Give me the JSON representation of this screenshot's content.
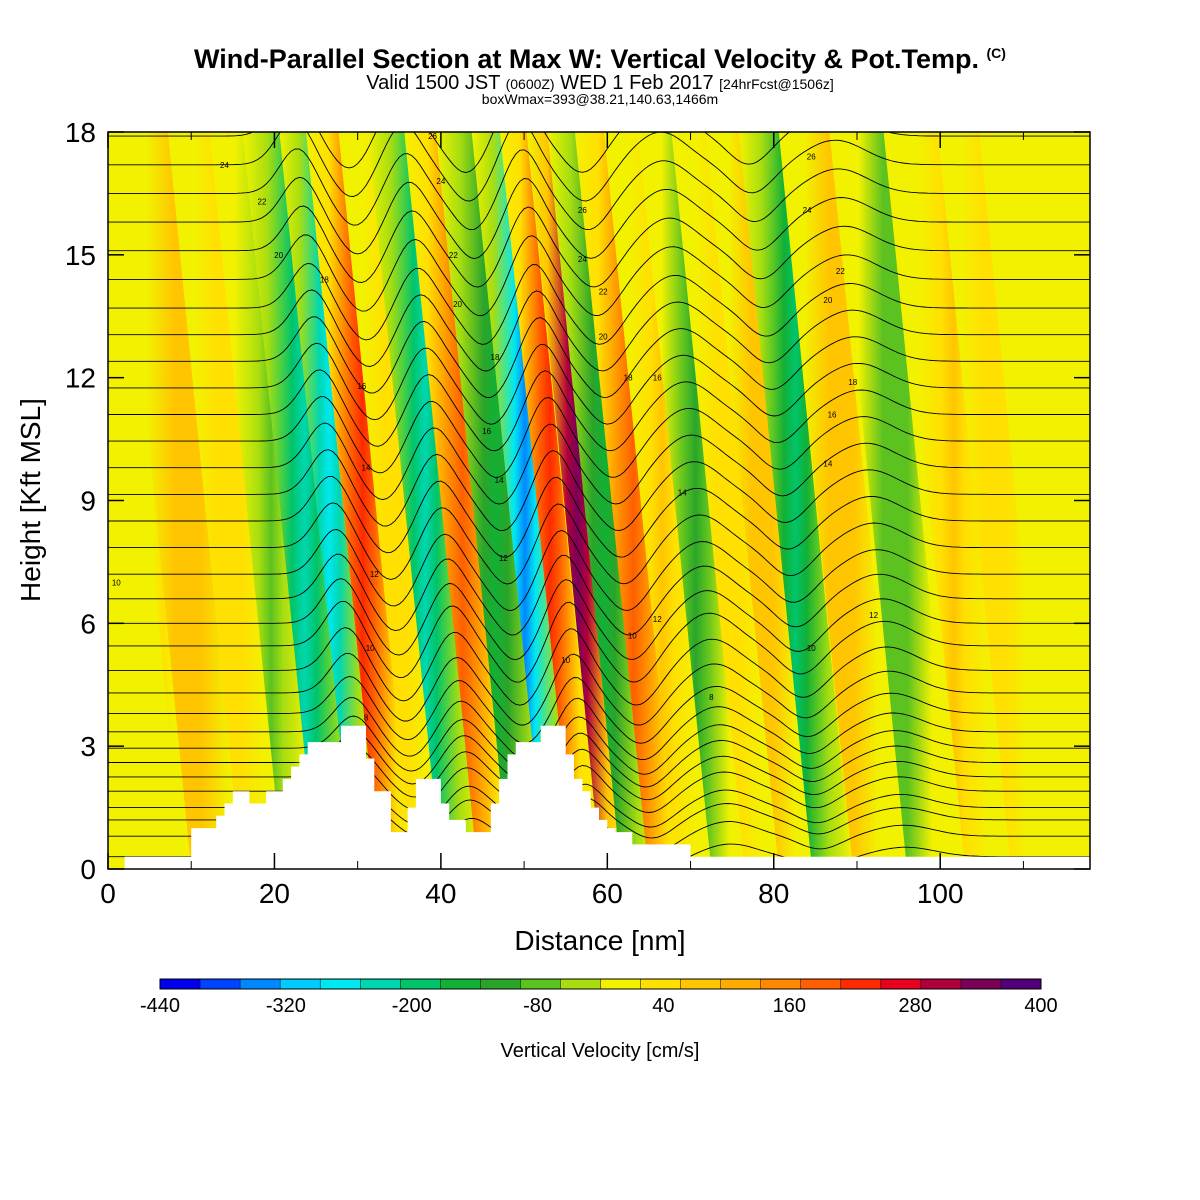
{
  "header": {
    "title": "Wind-Parallel Section at Max W: Vertical Velocity & Pot.Temp.",
    "copyright": "(C)",
    "valid_prefix": "Valid 1500 JST",
    "valid_zulu": "(0600Z)",
    "valid_date": "WED 1 Feb 2017",
    "forecast": "[24hrFcst@1506z]",
    "box_info": "boxWmax=393@38.21,140.63,1466m"
  },
  "chart_data": {
    "type": "heatmap",
    "xlabel": "Distance [nm]",
    "ylabel": "Height [Kft MSL]",
    "xlim": [
      0,
      118
    ],
    "ylim": [
      0,
      18
    ],
    "x_ticks": [
      0,
      20,
      40,
      60,
      80,
      100
    ],
    "y_ticks": [
      0,
      3,
      6,
      9,
      12,
      15,
      18
    ],
    "colorbar": {
      "label": "Vertical Velocity [cm/s]",
      "range": [
        -440,
        400
      ],
      "step": 40,
      "tick_labels": [
        -440,
        -320,
        -200,
        -80,
        40,
        160,
        280,
        400
      ],
      "colors": [
        "#0000ee",
        "#0044ff",
        "#0088ff",
        "#00ccff",
        "#00e8f0",
        "#00d7b0",
        "#00c46a",
        "#12b035",
        "#2aa52a",
        "#5cc220",
        "#a8de10",
        "#f2f200",
        "#ffe000",
        "#ffc500",
        "#ffab00",
        "#ff8800",
        "#ff5f00",
        "#ff2a00",
        "#e8001e",
        "#b0003c",
        "#7a0058",
        "#520078"
      ]
    },
    "terrain": [
      [
        0,
        0
      ],
      [
        2,
        0
      ],
      [
        2,
        0.3
      ],
      [
        10,
        0.3
      ],
      [
        10,
        1
      ],
      [
        13,
        1
      ],
      [
        13,
        1.3
      ],
      [
        14,
        1.3
      ],
      [
        14,
        1.6
      ],
      [
        15,
        1.6
      ],
      [
        15,
        1.9
      ],
      [
        17,
        1.9
      ],
      [
        17,
        1.6
      ],
      [
        19,
        1.6
      ],
      [
        19,
        1.9
      ],
      [
        21,
        1.9
      ],
      [
        21,
        2.2
      ],
      [
        22,
        2.2
      ],
      [
        22,
        2.5
      ],
      [
        23,
        2.5
      ],
      [
        23,
        2.8
      ],
      [
        24,
        2.8
      ],
      [
        24,
        3.1
      ],
      [
        28,
        3.1
      ],
      [
        28,
        3.5
      ],
      [
        31,
        3.5
      ],
      [
        31,
        2.7
      ],
      [
        32,
        2.7
      ],
      [
        32,
        1.9
      ],
      [
        34,
        1.9
      ],
      [
        34,
        0.9
      ],
      [
        36,
        0.9
      ],
      [
        36,
        1.5
      ],
      [
        37,
        1.5
      ],
      [
        37,
        2.2
      ],
      [
        40,
        2.2
      ],
      [
        40,
        1.6
      ],
      [
        41,
        1.6
      ],
      [
        41,
        1.2
      ],
      [
        43,
        1.2
      ],
      [
        43,
        0.9
      ],
      [
        46,
        0.9
      ],
      [
        46,
        1.6
      ],
      [
        47,
        1.6
      ],
      [
        47,
        2.2
      ],
      [
        48,
        2.2
      ],
      [
        48,
        2.8
      ],
      [
        49,
        2.8
      ],
      [
        49,
        3.1
      ],
      [
        52,
        3.1
      ],
      [
        52,
        3.5
      ],
      [
        55,
        3.5
      ],
      [
        55,
        2.8
      ],
      [
        56,
        2.8
      ],
      [
        56,
        2.2
      ],
      [
        57,
        2.2
      ],
      [
        57,
        1.9
      ],
      [
        58,
        1.9
      ],
      [
        58,
        1.5
      ],
      [
        59,
        1.5
      ],
      [
        59,
        1.2
      ],
      [
        60,
        1.2
      ],
      [
        60,
        1
      ],
      [
        61,
        1
      ],
      [
        61,
        0.9
      ],
      [
        63,
        0.9
      ],
      [
        63,
        0.6
      ],
      [
        70,
        0.6
      ],
      [
        70,
        0.3
      ],
      [
        118,
        0.3
      ],
      [
        118,
        0
      ]
    ],
    "series": [
      {
        "x": 11,
        "w": 2,
        "value": 40
      },
      {
        "x": 14,
        "w": 4,
        "value": 95
      },
      {
        "x": 19,
        "w": 3,
        "value": 50
      },
      {
        "x": 24,
        "w": 3,
        "value": -50
      },
      {
        "x": 28,
        "w": 3,
        "value": -210
      },
      {
        "x": 31,
        "w": 1.6,
        "value": -280
      },
      {
        "x": 35,
        "w": 2.4,
        "value": 250
      },
      {
        "x": 39,
        "w": 2.5,
        "value": 60
      },
      {
        "x": 42.5,
        "w": 2.5,
        "value": -230
      },
      {
        "x": 47,
        "w": 2.6,
        "value": 220
      },
      {
        "x": 51,
        "w": 2.8,
        "value": -150
      },
      {
        "x": 54.5,
        "w": 2,
        "value": -330
      },
      {
        "x": 57.5,
        "w": 1.6,
        "value": 250
      },
      {
        "x": 60.8,
        "w": 1.6,
        "value": 393
      },
      {
        "x": 64,
        "w": 2.4,
        "value": -150
      },
      {
        "x": 67.5,
        "w": 2.6,
        "value": 220
      },
      {
        "x": 71,
        "w": 2.6,
        "value": 80
      },
      {
        "x": 75,
        "w": 2.5,
        "value": -90
      },
      {
        "x": 79,
        "w": 2.5,
        "value": 70
      },
      {
        "x": 83,
        "w": 2.4,
        "value": 110
      },
      {
        "x": 87,
        "w": 2.4,
        "value": -170
      },
      {
        "x": 92.5,
        "w": 3,
        "value": 110
      },
      {
        "x": 99,
        "w": 3,
        "value": -70
      },
      {
        "x": 106,
        "w": 3,
        "value": 80
      },
      {
        "x": 111,
        "w": 2.5,
        "value": 50
      }
    ],
    "contours": {
      "base_levels": [
        0.3,
        0.8,
        1.2,
        1.5,
        1.9,
        2.25,
        2.6,
        2.95,
        3.35,
        3.8,
        4.3,
        4.85,
        5.45,
        6.0,
        6.6,
        7.2,
        7.85,
        8.5,
        9.15,
        9.8,
        10.45,
        11.1,
        11.75,
        12.4,
        13.05,
        13.7,
        14.4,
        15.1,
        15.8,
        16.5,
        17.2,
        17.9
      ],
      "labels": [
        {
          "text": "24",
          "x": 14,
          "y": 17.2
        },
        {
          "text": "22",
          "x": 18.5,
          "y": 16.3
        },
        {
          "text": "20",
          "x": 20.5,
          "y": 15.0
        },
        {
          "text": "18",
          "x": 26,
          "y": 14.4
        },
        {
          "text": "16",
          "x": 30.5,
          "y": 11.8
        },
        {
          "text": "14",
          "x": 31,
          "y": 9.8
        },
        {
          "text": "12",
          "x": 32,
          "y": 7.2
        },
        {
          "text": "10",
          "x": 31.5,
          "y": 5.4
        },
        {
          "text": "8",
          "x": 31,
          "y": 3.7
        },
        {
          "text": "26",
          "x": 39,
          "y": 17.9
        },
        {
          "text": "24",
          "x": 40,
          "y": 16.8
        },
        {
          "text": "22",
          "x": 41.5,
          "y": 15.0
        },
        {
          "text": "20",
          "x": 42,
          "y": 13.8
        },
        {
          "text": "18",
          "x": 46.5,
          "y": 12.5
        },
        {
          "text": "16",
          "x": 45.5,
          "y": 10.7
        },
        {
          "text": "14",
          "x": 47,
          "y": 9.5
        },
        {
          "text": "12",
          "x": 47.5,
          "y": 7.6
        },
        {
          "text": "10",
          "x": 55,
          "y": 5.1
        },
        {
          "text": "26",
          "x": 57,
          "y": 16.1
        },
        {
          "text": "24",
          "x": 57,
          "y": 14.9
        },
        {
          "text": "22",
          "x": 59.5,
          "y": 14.1
        },
        {
          "text": "20",
          "x": 59.5,
          "y": 13.0
        },
        {
          "text": "18",
          "x": 62.5,
          "y": 12.0
        },
        {
          "text": "16",
          "x": 66,
          "y": 12.0
        },
        {
          "text": "14",
          "x": 69,
          "y": 9.2
        },
        {
          "text": "12",
          "x": 66,
          "y": 6.1
        },
        {
          "text": "10",
          "x": 63,
          "y": 5.7
        },
        {
          "text": "8",
          "x": 72.5,
          "y": 4.2
        },
        {
          "text": "26",
          "x": 84.5,
          "y": 17.4
        },
        {
          "text": "24",
          "x": 84,
          "y": 16.1
        },
        {
          "text": "22",
          "x": 88,
          "y": 14.6
        },
        {
          "text": "20",
          "x": 86.5,
          "y": 13.9
        },
        {
          "text": "18",
          "x": 89.5,
          "y": 11.9
        },
        {
          "text": "16",
          "x": 87,
          "y": 11.1
        },
        {
          "text": "14",
          "x": 86.5,
          "y": 9.9
        },
        {
          "text": "12",
          "x": 92,
          "y": 6.2
        },
        {
          "text": "10",
          "x": 84.5,
          "y": 5.4
        },
        {
          "text": "10",
          "x": 1,
          "y": 7.0
        }
      ]
    },
    "grid": false
  }
}
